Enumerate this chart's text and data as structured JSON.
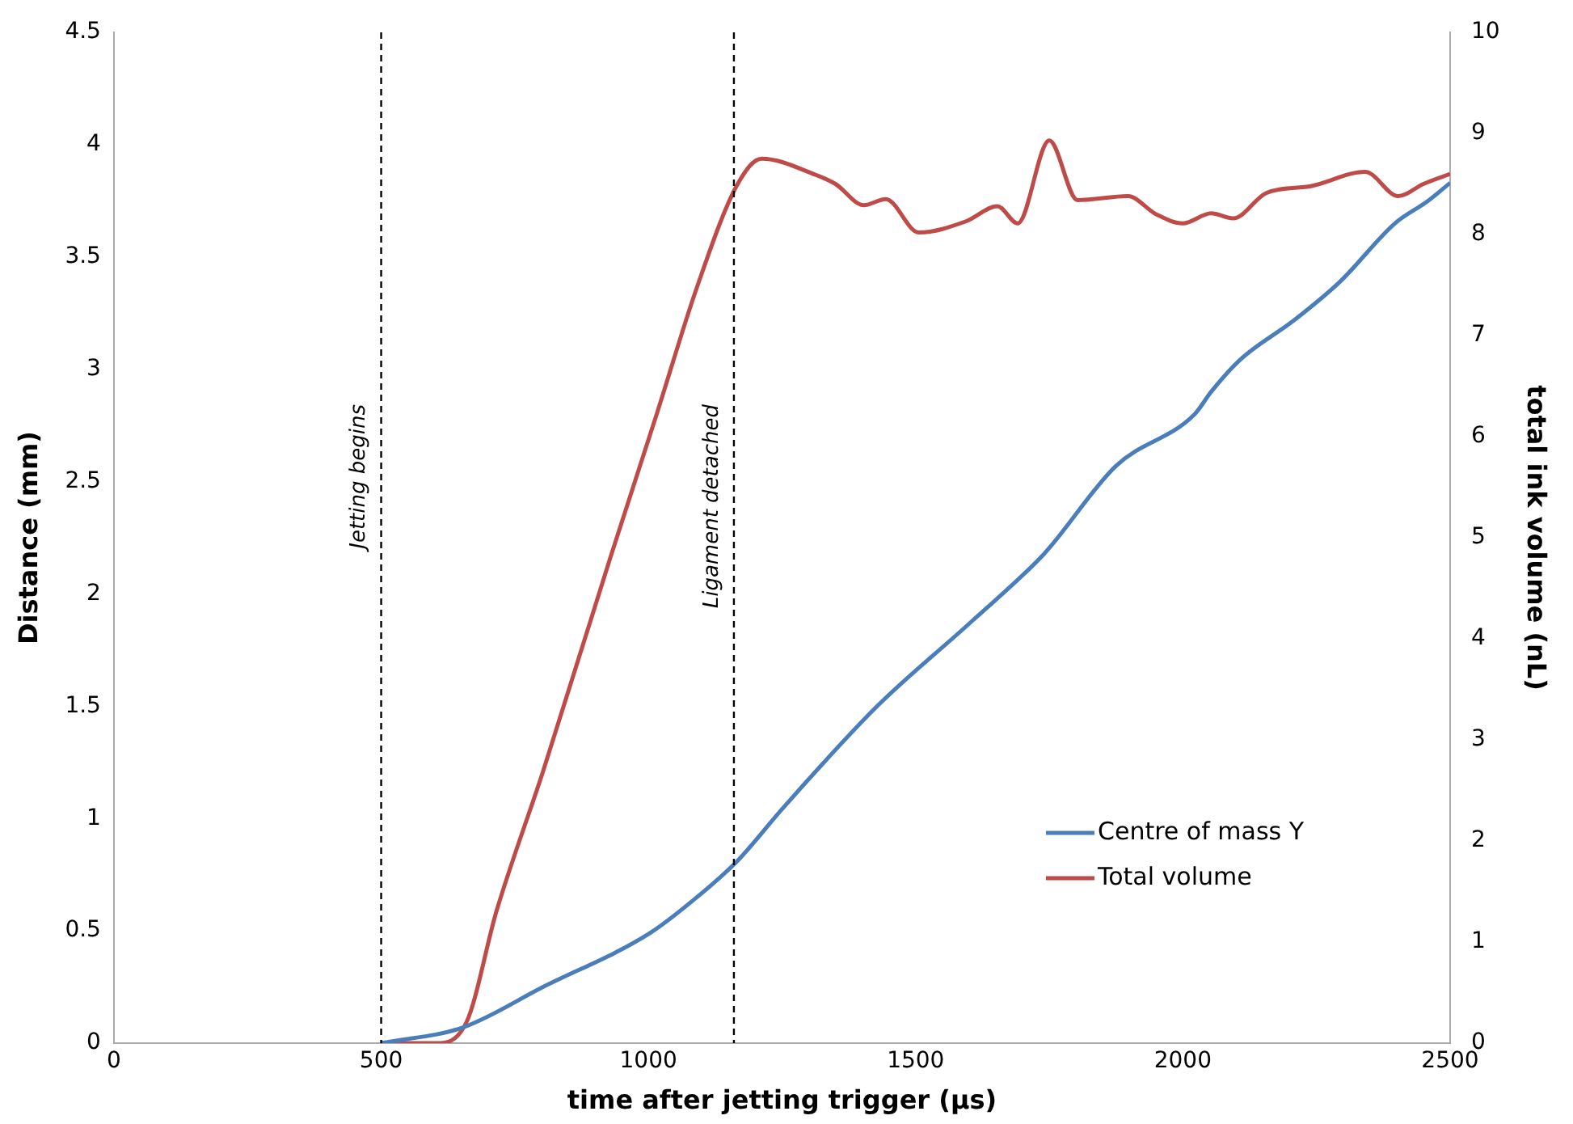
{
  "chart_data": {
    "type": "line",
    "xlabel": "time after jetting trigger (µs)",
    "ylabel": "Distance (mm)",
    "y2label": "total ink volume (nL)",
    "xlim": [
      0,
      2500
    ],
    "xticks": [
      0,
      500,
      1000,
      1500,
      2000,
      2500
    ],
    "ylim": [
      0,
      4.5
    ],
    "yticks": [
      0,
      0.5,
      1,
      1.5,
      2,
      2.5,
      3,
      3.5,
      4,
      4.5
    ],
    "y2lim": [
      0,
      10
    ],
    "y2ticks": [
      0,
      1,
      2,
      3,
      4,
      5,
      6,
      7,
      8,
      9,
      10
    ],
    "grid": false,
    "legend": "bottom right",
    "marker": "none",
    "line_style": "solid",
    "ref_lines": [
      {
        "axis": "x",
        "value": 500,
        "label": "Jetting begins",
        "color": "#000000",
        "line_style": "dashed"
      },
      {
        "axis": "x",
        "value": 1160,
        "label": "Ligament detached",
        "color": "#000000",
        "line_style": "dashed"
      }
    ],
    "series": [
      {
        "name": "Centre of mass Y",
        "color": "#4a7ebb",
        "x": [
          500,
          653,
          803,
          1003,
          1091,
          1166,
          1253,
          1428,
          1606,
          1741,
          1875,
          2022,
          2053,
          2106,
          2209,
          2294,
          2397,
          2459,
          2500
        ],
        "values": [
          0,
          0.07,
          0.25,
          0.49,
          0.65,
          0.81,
          1.05,
          1.5,
          1.88,
          2.18,
          2.57,
          2.8,
          2.9,
          3.04,
          3.22,
          3.39,
          3.65,
          3.75,
          3.83
        ]
      },
      {
        "name": "Total volume",
        "color": "#be4b48",
        "axis": "y2",
        "x": [
          500,
          603,
          659,
          716,
          803,
          928,
          1016,
          1091,
          1166,
          1212,
          1313,
          1350,
          1403,
          1444,
          1506,
          1594,
          1653,
          1691,
          1750,
          1803,
          1897,
          1950,
          2000,
          2053,
          2094,
          2156,
          2241,
          2341,
          2403,
          2450,
          2500
        ],
        "values": [
          0,
          0,
          0.2,
          1.31,
          2.69,
          4.79,
          6.23,
          7.48,
          8.49,
          8.75,
          8.59,
          8.5,
          8.29,
          8.35,
          8.02,
          8.13,
          8.28,
          8.11,
          8.93,
          8.34,
          8.38,
          8.2,
          8.11,
          8.21,
          8.16,
          8.41,
          8.48,
          8.62,
          8.38,
          8.5,
          8.6
        ]
      }
    ]
  }
}
